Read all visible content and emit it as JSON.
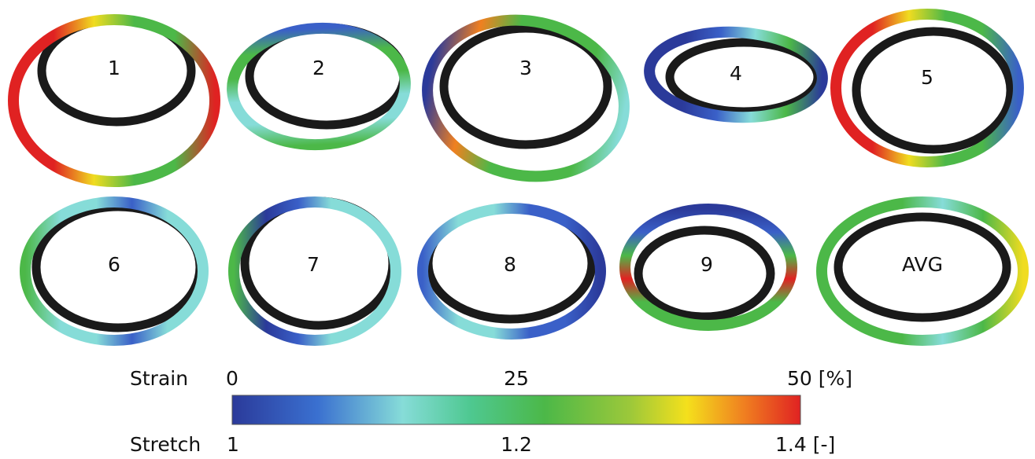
{
  "panels": [
    {
      "label": "1"
    },
    {
      "label": "2"
    },
    {
      "label": "3"
    },
    {
      "label": "4"
    },
    {
      "label": "5"
    },
    {
      "label": "6"
    },
    {
      "label": "7"
    },
    {
      "label": "8"
    },
    {
      "label": "9"
    },
    {
      "label": "AVG"
    }
  ],
  "colorbar": {
    "strain": {
      "label": "Strain",
      "ticks": [
        "0",
        "25",
        "50 [%]"
      ]
    },
    "stretch": {
      "label": "Stretch",
      "ticks": [
        "1",
        "1.2",
        "1.4 [-]"
      ]
    }
  }
}
